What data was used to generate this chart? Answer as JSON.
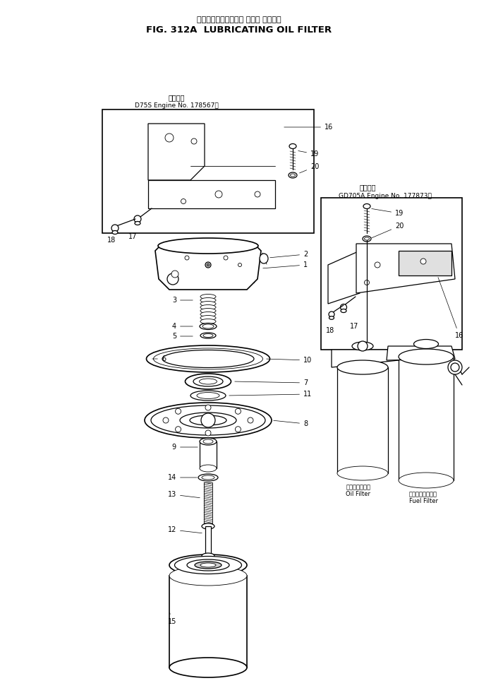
{
  "title_japanese": "ルーブリケーティング オイル フィルタ",
  "title_english": "FIG. 312A  LUBRICATING OIL FILTER",
  "bg_color": "#ffffff",
  "line_color": "#000000",
  "box1_label_jp": "適用号機",
  "box1_label_en": "D75S Engine No. 178567～",
  "box2_label_jp": "適用号機",
  "box2_label_en": "GD705A Engine No. 177873～",
  "oil_filter_label_jp": "オイルフィルタ",
  "oil_filter_label_en": "Oil Filter",
  "fuel_filter_label_jp": "フュエルフィルタ",
  "fuel_filter_label_en": "Fuel Filter"
}
